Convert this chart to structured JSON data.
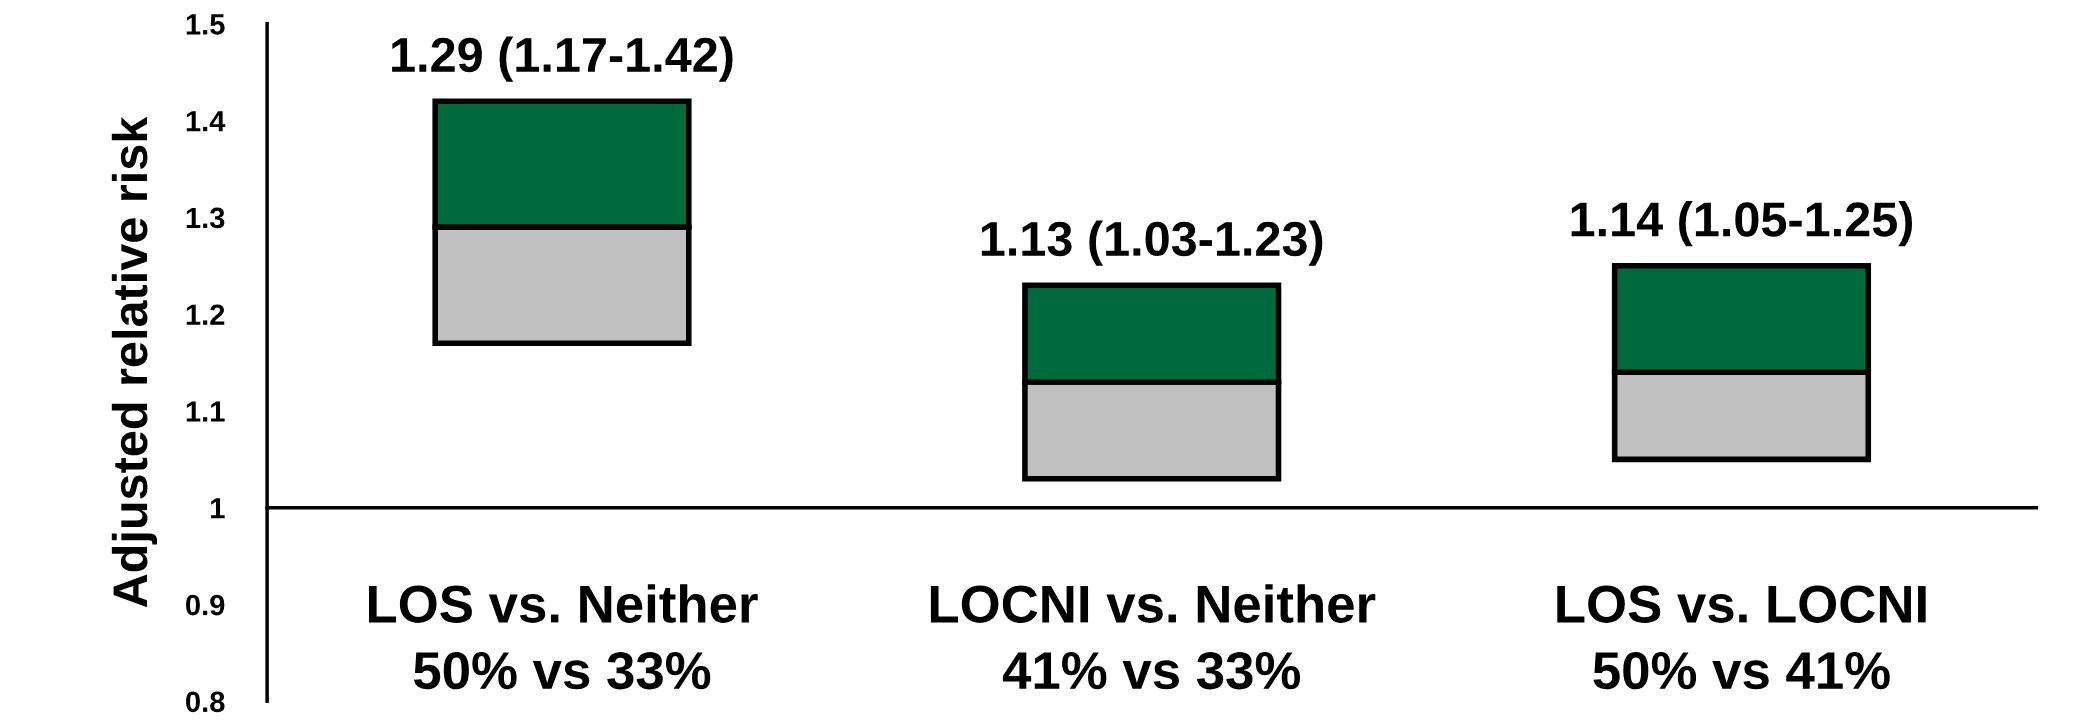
{
  "chart_data": {
    "type": "bar",
    "ylabel": "Adjusted relative risk",
    "categories": [
      "LOS vs. Neither\n50% vs 33%",
      "LOCNI vs. Neither\n41% vs 33%",
      "LOS vs. LOCNI\n50% vs 41%"
    ],
    "series": [
      {
        "color": "#c0c0c0",
        "base": [
          1.17,
          1.03,
          1.05
        ],
        "values": [
          0.12,
          0.1,
          0.09
        ]
      },
      {
        "color": "#006a3f",
        "base": [
          1.29,
          1.13,
          1.14
        ],
        "values": [
          0.13,
          0.1,
          0.11
        ]
      }
    ],
    "annotations": [
      {
        "text": "1.29 (1.17-1.42)",
        "x": "LOS vs. Neither\n50% vs 33%",
        "y": 1.42
      },
      {
        "text": "1.13 (1.03-1.23)",
        "x": "LOCNI vs. Neither\n41% vs 33%",
        "y": 1.23
      },
      {
        "text": "1.14 (1.05-1.25)",
        "x": "LOS vs. LOCNI\n50% vs 41%",
        "y": 1.25
      }
    ],
    "ylim": [
      0.8,
      1.5
    ],
    "yticks": [
      0.8,
      0.9,
      1,
      1.1,
      1.2,
      1.3,
      1.4,
      1.5
    ],
    "legend": false
  }
}
